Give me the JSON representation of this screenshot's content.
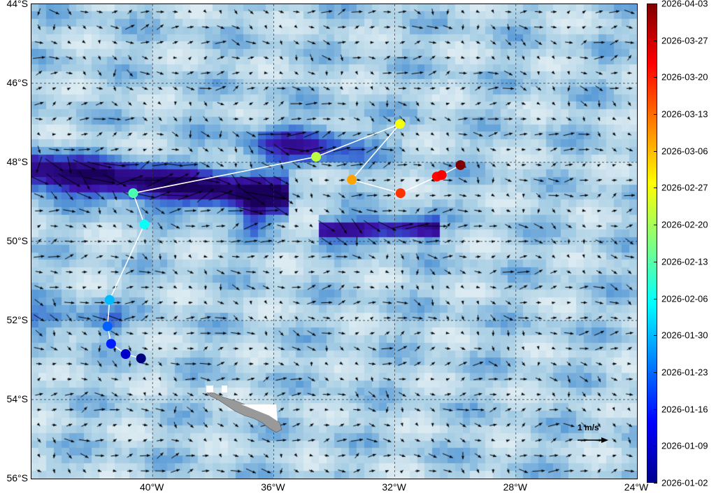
{
  "map": {
    "extent": {
      "lon": [
        -44,
        -24
      ],
      "lat": [
        -56,
        -44
      ]
    },
    "lat_ticks": [
      "44°S",
      "46°S",
      "48°S",
      "50°S",
      "52°S",
      "54°S",
      "56°S"
    ],
    "lon_ticks": [
      "40°W",
      "36°W",
      "32°W",
      "28°W",
      "24°W"
    ],
    "grid": true,
    "background": "ocean current speed field (blue shading) with current velocity arrows",
    "land_color": "#999999",
    "track_line_color": "#ffffff",
    "scale_arrow": {
      "label": "1 m/s",
      "value_mps": 1
    }
  },
  "colorbar": {
    "colormap": "jet",
    "ticks": [
      "2026-04-03",
      "2026-03-27",
      "2026-03-20",
      "2026-03-13",
      "2026-03-06",
      "2026-02-27",
      "2026-02-20",
      "2026-02-13",
      "2026-02-06",
      "2026-01-30",
      "2026-01-23",
      "2026-01-16",
      "2026-01-09",
      "2026-01-02"
    ]
  },
  "track": [
    {
      "date": "2026-01-02",
      "lon": -40.38,
      "lat": -52.96
    },
    {
      "date": "2026-01-09",
      "lon": -40.89,
      "lat": -52.85
    },
    {
      "date": "2026-01-16",
      "lon": -41.37,
      "lat": -52.59
    },
    {
      "date": "2026-01-22",
      "lon": -41.49,
      "lat": -52.15
    },
    {
      "date": "2026-01-30",
      "lon": -41.42,
      "lat": -51.48
    },
    {
      "date": "2026-02-06",
      "lon": -40.27,
      "lat": -49.57
    },
    {
      "date": "2026-02-12",
      "lon": -40.64,
      "lat": -48.78
    },
    {
      "date": "2026-02-22",
      "lon": -34.6,
      "lat": -47.86
    },
    {
      "date": "2026-02-27",
      "lon": -31.83,
      "lat": -47.03
    },
    {
      "date": "2026-03-08",
      "lon": -33.42,
      "lat": -48.44
    },
    {
      "date": "2026-03-18",
      "lon": -31.81,
      "lat": -48.78
    },
    {
      "date": "2026-03-22",
      "lon": -30.61,
      "lat": -48.36
    },
    {
      "date": "2026-03-23",
      "lon": -30.45,
      "lat": -48.32
    },
    {
      "date": "2026-04-03",
      "lon": -29.83,
      "lat": -48.07
    }
  ]
}
